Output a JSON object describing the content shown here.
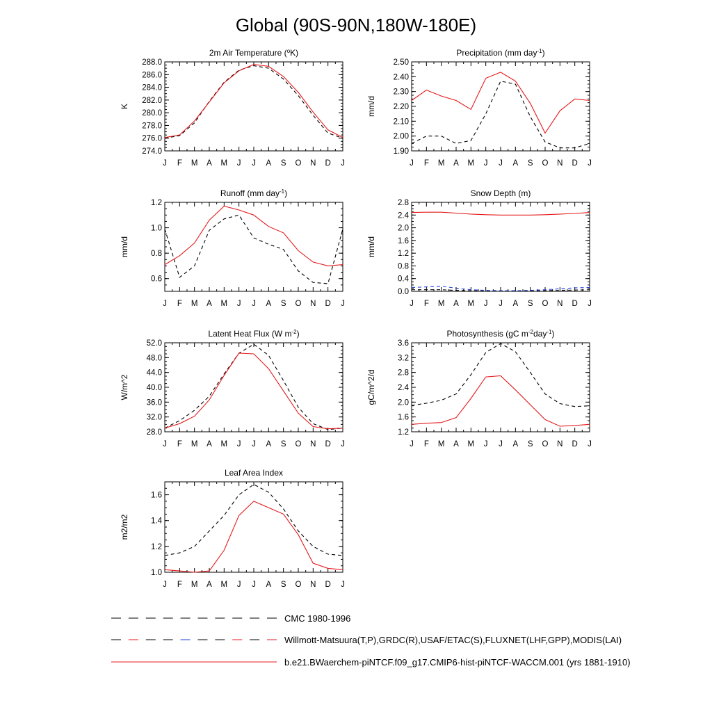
{
  "figure": {
    "title": "Global (90S-90N,180W-180E)"
  },
  "legend": [
    {
      "label": "CMC 1980-1996",
      "style": "dashed",
      "colors": [
        "#000000"
      ]
    },
    {
      "label": "Willmott-Matsuura(T,P),GRDC(R),USAF/ETAC(S),FLUXNET(LHF,GPP),MODIS(LAI)",
      "style": "dashed",
      "colors": [
        "#000000",
        "#e41a1c",
        "#000000",
        "#000000",
        "#1f3fd6",
        "#000000",
        "#000000",
        "#e41a1c"
      ]
    },
    {
      "label": "b.e21.BWaerchem-piNTCF.f09_g17.CMIP6-hist-piNTCF-WACCM.001 (yrs 1881-1910)",
      "style": "solid",
      "colors": [
        "#e41a1c"
      ]
    }
  ],
  "chart_data": [
    {
      "type": "line",
      "title": "2m Air Temperature (",
      "title_sup": "o",
      "title_after": "K)",
      "ylabel": "K",
      "categories": [
        "J",
        "F",
        "M",
        "A",
        "M",
        "J",
        "J",
        "A",
        "S",
        "O",
        "N",
        "D",
        "J"
      ],
      "ylim": [
        274.0,
        288.0
      ],
      "yticks": [
        "274.0",
        "276.0",
        "278.0",
        "280.0",
        "282.0",
        "284.0",
        "286.0",
        "288.0"
      ],
      "series": [
        {
          "role": "obs",
          "color": "#000000",
          "dash": true,
          "values": [
            276.0,
            276.4,
            278.4,
            281.8,
            284.8,
            286.7,
            287.4,
            287.0,
            285.3,
            282.7,
            279.6,
            276.8,
            276.0
          ]
        },
        {
          "role": "model",
          "color": "#e41a1c",
          "dash": false,
          "values": [
            276.1,
            276.5,
            278.7,
            281.7,
            284.7,
            286.6,
            287.6,
            287.3,
            285.7,
            283.2,
            280.1,
            277.3,
            276.1
          ]
        }
      ]
    },
    {
      "type": "line",
      "title": "Precipitation (mm day",
      "title_sup": "-1",
      "title_after": ")",
      "ylabel": "mm/d",
      "categories": [
        "J",
        "F",
        "M",
        "A",
        "M",
        "J",
        "J",
        "A",
        "S",
        "O",
        "N",
        "D",
        "J"
      ],
      "ylim": [
        1.9,
        2.5
      ],
      "yticks": [
        "1.90",
        "2.00",
        "2.10",
        "2.20",
        "2.30",
        "2.40",
        "2.50"
      ],
      "series": [
        {
          "role": "obs",
          "color": "#000000",
          "dash": true,
          "values": [
            1.95,
            2.0,
            2.0,
            1.95,
            1.97,
            2.15,
            2.37,
            2.35,
            2.13,
            1.96,
            1.92,
            1.92,
            1.95
          ]
        },
        {
          "role": "model",
          "color": "#e41a1c",
          "dash": false,
          "values": [
            2.24,
            2.31,
            2.27,
            2.24,
            2.18,
            2.39,
            2.43,
            2.37,
            2.22,
            2.02,
            2.17,
            2.25,
            2.24
          ]
        }
      ]
    },
    {
      "type": "line",
      "title": "Runoff (mm day",
      "title_sup": "-1",
      "title_after": ")",
      "ylabel": "mm/d",
      "categories": [
        "J",
        "F",
        "M",
        "A",
        "M",
        "J",
        "J",
        "A",
        "S",
        "O",
        "N",
        "D",
        "J"
      ],
      "ylim": [
        0.5,
        1.2
      ],
      "yticks": [
        "0.6",
        "0.8",
        "1.0",
        "1.2"
      ],
      "series": [
        {
          "role": "obs",
          "color": "#000000",
          "dash": true,
          "values": [
            0.99,
            0.61,
            0.7,
            0.98,
            1.07,
            1.1,
            0.92,
            0.87,
            0.83,
            0.66,
            0.57,
            0.56,
            0.99
          ]
        },
        {
          "role": "model",
          "color": "#e41a1c",
          "dash": false,
          "values": [
            0.71,
            0.78,
            0.88,
            1.06,
            1.17,
            1.14,
            1.1,
            1.01,
            0.96,
            0.82,
            0.73,
            0.7,
            0.71
          ]
        }
      ]
    },
    {
      "type": "line",
      "title": "Snow Depth (m)",
      "title_sup": "",
      "title_after": "",
      "ylabel": "mm/d",
      "categories": [
        "J",
        "F",
        "M",
        "A",
        "M",
        "J",
        "J",
        "A",
        "S",
        "O",
        "N",
        "D",
        "J"
      ],
      "ylim": [
        0.0,
        2.8
      ],
      "yticks": [
        "0.0",
        "0.4",
        "0.8",
        "1.2",
        "1.6",
        "2.0",
        "2.4",
        "2.8"
      ],
      "series": [
        {
          "role": "obs",
          "color": "#000000",
          "dash": true,
          "values": [
            0.05,
            0.05,
            0.05,
            0.03,
            0.02,
            0.01,
            0.01,
            0.01,
            0.01,
            0.02,
            0.03,
            0.04,
            0.05
          ]
        },
        {
          "role": "obs2",
          "color": "#1f3fd6",
          "dash": true,
          "values": [
            0.12,
            0.14,
            0.16,
            0.1,
            0.05,
            0.03,
            0.02,
            0.02,
            0.03,
            0.05,
            0.08,
            0.11,
            0.12
          ]
        },
        {
          "role": "model",
          "color": "#e41a1c",
          "dash": false,
          "values": [
            2.48,
            2.49,
            2.49,
            2.46,
            2.43,
            2.41,
            2.4,
            2.4,
            2.4,
            2.41,
            2.43,
            2.45,
            2.48
          ]
        }
      ]
    },
    {
      "type": "line",
      "title": "Latent Heat Flux (W m",
      "title_sup": "-2",
      "title_after": ")",
      "ylabel": "W/m^2",
      "categories": [
        "J",
        "F",
        "M",
        "A",
        "M",
        "J",
        "J",
        "A",
        "S",
        "O",
        "N",
        "D",
        "J"
      ],
      "ylim": [
        28.0,
        52.0
      ],
      "yticks": [
        "28.0",
        "32.0",
        "36.0",
        "40.0",
        "44.0",
        "48.0",
        "52.0"
      ],
      "series": [
        {
          "role": "obs",
          "color": "#000000",
          "dash": true,
          "values": [
            29.0,
            31.0,
            33.8,
            37.6,
            43.6,
            49.2,
            51.6,
            48.6,
            41.8,
            34.6,
            30.2,
            28.6,
            29.0
          ]
        },
        {
          "role": "model",
          "color": "#e41a1c",
          "dash": false,
          "values": [
            29.0,
            30.2,
            32.2,
            36.6,
            43.2,
            49.2,
            49.0,
            45.0,
            39.0,
            33.0,
            29.4,
            28.8,
            29.0
          ]
        }
      ]
    },
    {
      "type": "line",
      "title": "Photosynthesis (gC m",
      "title_sup": "-2",
      "title_after": "day",
      "title_sup2": "-1",
      "title_after2": ")",
      "ylabel": "gC/m^2/d",
      "categories": [
        "J",
        "F",
        "M",
        "A",
        "M",
        "J",
        "J",
        "A",
        "S",
        "O",
        "N",
        "D",
        "J"
      ],
      "ylim": [
        1.2,
        3.6
      ],
      "yticks": [
        "1.2",
        "1.6",
        "2.0",
        "2.4",
        "2.8",
        "3.2",
        "3.6"
      ],
      "series": [
        {
          "role": "obs",
          "color": "#000000",
          "dash": true,
          "values": [
            1.91,
            1.97,
            2.05,
            2.22,
            2.74,
            3.34,
            3.58,
            3.36,
            2.8,
            2.22,
            1.96,
            1.88,
            1.9
          ]
        },
        {
          "role": "model",
          "color": "#e41a1c",
          "dash": false,
          "values": [
            1.4,
            1.43,
            1.45,
            1.58,
            2.1,
            2.68,
            2.71,
            2.33,
            1.93,
            1.53,
            1.35,
            1.37,
            1.4
          ]
        }
      ]
    },
    {
      "type": "line",
      "title": "Leaf Area Index",
      "title_sup": "",
      "title_after": "",
      "ylabel": "m2/m2",
      "categories": [
        "J",
        "F",
        "M",
        "A",
        "M",
        "J",
        "J",
        "A",
        "S",
        "O",
        "N",
        "D",
        "J"
      ],
      "ylim": [
        1.0,
        1.7
      ],
      "yticks": [
        "1.0",
        "1.2",
        "1.4",
        "1.6"
      ],
      "series": [
        {
          "role": "obs",
          "color": "#000000",
          "dash": true,
          "values": [
            1.13,
            1.15,
            1.2,
            1.32,
            1.44,
            1.6,
            1.68,
            1.62,
            1.49,
            1.32,
            1.2,
            1.14,
            1.13
          ]
        },
        {
          "role": "model",
          "color": "#e41a1c",
          "dash": false,
          "values": [
            1.02,
            1.01,
            1.0,
            1.01,
            1.17,
            1.44,
            1.55,
            1.5,
            1.45,
            1.29,
            1.07,
            1.03,
            1.02
          ]
        }
      ]
    }
  ]
}
